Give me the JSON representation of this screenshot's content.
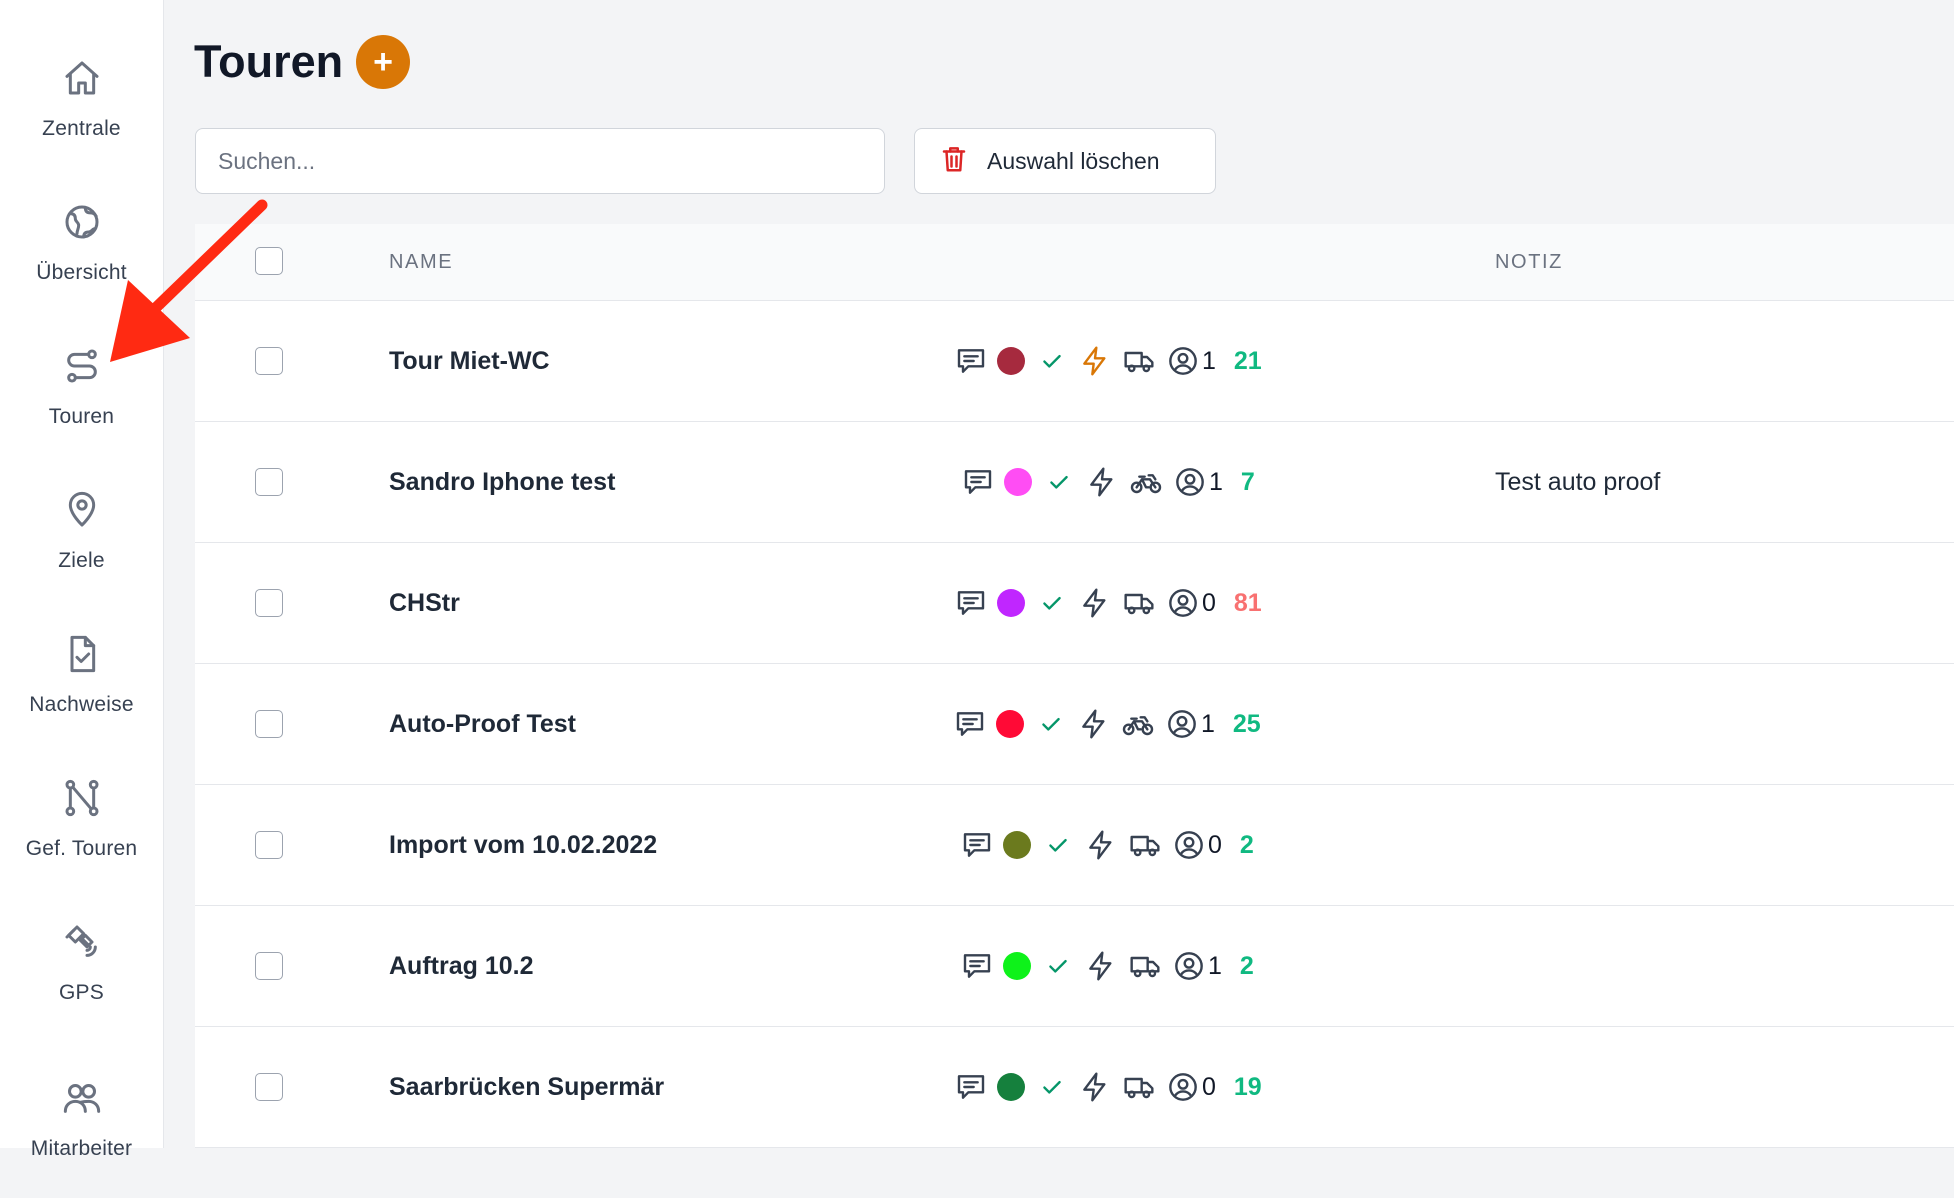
{
  "sidebar": {
    "items": [
      {
        "label": "Zentrale",
        "icon": "home-icon"
      },
      {
        "label": "Übersicht",
        "icon": "globe-icon"
      },
      {
        "label": "Touren",
        "icon": "route-icon"
      },
      {
        "label": "Ziele",
        "icon": "map-pin-icon"
      },
      {
        "label": "Nachweise",
        "icon": "document-check-icon"
      },
      {
        "label": "Gef. Touren",
        "icon": "path-icon"
      },
      {
        "label": "GPS",
        "icon": "satellite-icon"
      },
      {
        "label": "Mitarbeiter",
        "icon": "users-icon"
      }
    ]
  },
  "header": {
    "title": "Touren",
    "add_label": "+"
  },
  "search": {
    "placeholder": "Suchen..."
  },
  "toolbar": {
    "clear_label": "Auswahl löschen"
  },
  "table": {
    "columns": {
      "name": "NAME",
      "note": "NOTIZ"
    },
    "rows": [
      {
        "name": "Tour Miet-WC",
        "color": "#a62a3e",
        "bolt_color": "#d97706",
        "vehicle": "truck",
        "users": "1",
        "count": "21",
        "count_color": "#10b981",
        "note": ""
      },
      {
        "name": "Sandro Iphone test",
        "color": "#ff4df4",
        "bolt_color": "#374151",
        "vehicle": "bike",
        "users": "1",
        "count": "7",
        "count_color": "#10b981",
        "note": "Test auto proof"
      },
      {
        "name": "CHStr",
        "color": "#c026ff",
        "bolt_color": "#374151",
        "vehicle": "truck",
        "users": "0",
        "count": "81",
        "count_color": "#f87171",
        "note": ""
      },
      {
        "name": "Auto-Proof Test",
        "color": "#ff0a36",
        "bolt_color": "#374151",
        "vehicle": "bike",
        "users": "1",
        "count": "25",
        "count_color": "#10b981",
        "note": ""
      },
      {
        "name": "Import vom 10.02.2022",
        "color": "#6b7a1e",
        "bolt_color": "#374151",
        "vehicle": "truck",
        "users": "0",
        "count": "2",
        "count_color": "#10b981",
        "note": ""
      },
      {
        "name": "Auftrag 10.2",
        "color": "#0ef21a",
        "bolt_color": "#374151",
        "vehicle": "truck",
        "users": "1",
        "count": "2",
        "count_color": "#10b981",
        "note": ""
      },
      {
        "name": "Saarbrücken Supermär",
        "color": "#15803d",
        "bolt_color": "#374151",
        "vehicle": "truck",
        "users": "0",
        "count": "19",
        "count_color": "#10b981",
        "note": ""
      }
    ]
  },
  "annotation": {
    "arrow_color": "#ff2a12"
  }
}
